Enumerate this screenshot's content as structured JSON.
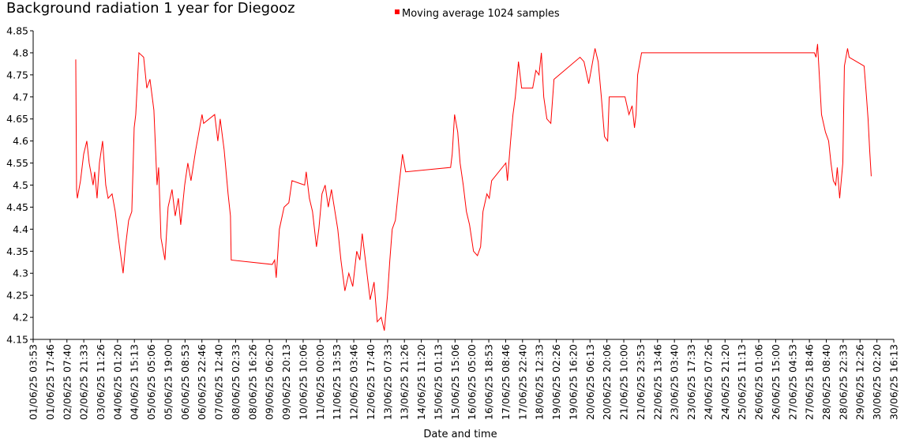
{
  "chart_data": {
    "type": "line",
    "title": "Background radiation 1 year for Diegooz",
    "x_label": "Date and time",
    "legend_position": "top",
    "grid": false,
    "xlim": [
      "01/06/25 03:53",
      "30/06/25 16:13"
    ],
    "xticks": [
      "01/06/25 03:53",
      "01/06/25 17:46",
      "02/06/25 07:40",
      "02/06/25 21:33",
      "03/06/25 11:26",
      "04/06/25 01:20",
      "04/06/25 15:13",
      "05/06/25 05:06",
      "05/06/25 19:00",
      "06/06/25 08:53",
      "06/06/25 22:46",
      "07/06/25 12:40",
      "08/06/25 02:33",
      "08/06/25 16:26",
      "09/06/25 06:20",
      "09/06/25 20:13",
      "10/06/25 10:06",
      "11/06/25 00:00",
      "11/06/25 13:53",
      "12/06/25 03:46",
      "12/06/25 17:40",
      "13/06/25 07:33",
      "13/06/25 21:26",
      "14/06/25 11:20",
      "15/06/25 01:13",
      "15/06/25 15:06",
      "16/06/25 05:00",
      "16/06/25 18:53",
      "17/06/25 08:46",
      "17/06/25 22:40",
      "18/06/25 12:33",
      "19/06/25 02:26",
      "19/06/25 16:20",
      "20/06/25 06:13",
      "20/06/25 20:06",
      "21/06/25 10:00",
      "21/06/25 23:53",
      "22/06/25 13:46",
      "23/06/25 03:40",
      "23/06/25 17:33",
      "24/06/25 07:26",
      "24/06/25 21:20",
      "25/06/25 11:13",
      "26/06/25 01:06",
      "26/06/25 15:00",
      "27/06/25 04:53",
      "27/06/25 18:46",
      "28/06/25 08:40",
      "28/06/25 22:33",
      "29/06/25 12:26",
      "30/06/25 02:20",
      "30/06/25 16:13"
    ],
    "ylim": [
      4.15,
      4.85
    ],
    "yticks": [
      4.15,
      4.2,
      4.25,
      4.3,
      4.35,
      4.4,
      4.45,
      4.5,
      4.55,
      4.6,
      4.65,
      4.7,
      4.75,
      4.8,
      4.85
    ],
    "x": [
      "02/06/25 14:57",
      "02/06/25 15:36",
      "02/06/25 16:15",
      "02/06/25 18:51",
      "02/06/25 21:27",
      "03/06/25 00:03",
      "03/06/25 01:59",
      "03/06/25 05:14",
      "03/06/25 06:32",
      "03/06/25 08:29",
      "03/06/25 10:26",
      "03/06/25 13:02",
      "03/06/25 15:38",
      "03/06/25 17:35",
      "03/06/25 20:50",
      "03/06/25 23:26",
      "04/06/25 02:02",
      "04/06/25 05:55",
      "04/06/25 07:52",
      "04/06/25 10:28",
      "04/06/25 13:04",
      "04/06/25 15:01",
      "04/06/25 16:19",
      "04/06/25 18:55",
      "04/06/25 22:49",
      "05/06/25 01:25",
      "05/06/25 04:01",
      "05/06/25 07:15",
      "05/06/25 09:51",
      "05/06/25 11:09",
      "05/06/25 13:06",
      "05/06/25 16:21",
      "05/06/25 18:56",
      "05/06/25 22:11",
      "06/06/25 00:47",
      "06/06/25 03:23",
      "06/06/25 05:20",
      "06/06/25 08:35",
      "06/06/25 11:11",
      "06/06/25 13:47",
      "06/06/25 17:41",
      "06/06/25 22:52",
      "07/06/25 00:10",
      "07/06/25 09:16",
      "07/06/25 11:52",
      "07/06/25 13:49",
      "07/06/25 17:04",
      "07/06/25 20:19",
      "07/06/25 22:16",
      "07/06/25 22:54",
      "09/06/25 08:41",
      "09/06/25 10:38",
      "09/06/25 11:56",
      "09/06/25 14:31",
      "09/06/25 18:25",
      "09/06/25 22:19",
      "10/06/25 00:55",
      "10/06/25 11:19",
      "10/06/25 12:37",
      "10/06/25 15:13",
      "10/06/25 17:48",
      "10/06/25 21:03",
      "10/06/25 23:00",
      "11/06/25 01:36",
      "11/06/25 04:12",
      "11/06/25 06:47",
      "11/06/25 09:23",
      "11/06/25 14:35",
      "11/06/25 17:11",
      "11/06/25 20:26",
      "11/06/25 23:41",
      "12/06/25 02:56",
      "12/06/25 06:11",
      "12/06/25 08:46",
      "12/06/25 10:43",
      "12/06/25 14:37",
      "12/06/25 17:13",
      "12/06/25 20:28",
      "12/06/25 23:04",
      "13/06/25 02:19",
      "13/06/25 04:55",
      "13/06/25 07:31",
      "13/06/25 09:27",
      "13/06/25 11:24",
      "13/06/25 14:00",
      "13/06/25 16:36",
      "13/06/25 19:51",
      "13/06/25 22:26",
      "15/06/25 11:28",
      "15/06/25 12:46",
      "15/06/25 14:43",
      "15/06/25 17:19",
      "15/06/25 19:16",
      "15/06/25 21:52",
      "16/06/25 00:28",
      "16/06/25 03:03",
      "16/06/25 06:18",
      "16/06/25 09:33",
      "16/06/25 12:09",
      "16/06/25 14:06",
      "16/06/25 17:20",
      "16/06/25 19:17",
      "16/06/25 21:14",
      "17/06/25 08:56",
      "17/06/25 10:14",
      "17/06/25 12:50",
      "17/06/25 14:47",
      "17/06/25 16:43",
      "17/06/25 19:19",
      "17/06/25 21:55",
      "18/06/25 07:01",
      "18/06/25 09:37",
      "18/06/25 12:13",
      "18/06/25 14:10",
      "18/06/25 16:07",
      "18/06/25 18:42",
      "18/06/25 21:57",
      "19/06/25 00:33",
      "19/06/25 21:59",
      "20/06/25 01:14",
      "20/06/25 05:08",
      "20/06/25 10:19",
      "20/06/25 12:55",
      "20/06/25 15:31",
      "20/06/25 18:07",
      "20/06/25 20:43",
      "20/06/25 22:01",
      "21/06/25 11:01",
      "21/06/25 14:15",
      "21/06/25 16:51",
      "21/06/25 18:48",
      "21/06/25 20:06",
      "21/06/25 21:24",
      "22/06/25 00:38",
      "27/06/25 22:53",
      "28/06/25 00:11",
      "28/06/25 01:29",
      "28/06/25 04:44",
      "28/06/25 07:59",
      "28/06/25 10:35",
      "28/06/25 12:31",
      "28/06/25 14:28",
      "28/06/25 16:25",
      "28/06/25 17:43",
      "28/06/25 19:40",
      "28/06/25 22:16",
      "28/06/25 23:34",
      "29/06/25 02:10",
      "29/06/25 03:28",
      "29/06/25 15:48",
      "29/06/25 17:45",
      "29/06/25 19:03",
      "29/06/25 20:21",
      "29/06/25 21:39"
    ],
    "series": [
      {
        "name": "Moving average 1024 samples",
        "color": "#ff0000",
        "values": [
          4.785,
          4.49,
          4.47,
          4.51,
          4.57,
          4.6,
          4.55,
          4.5,
          4.53,
          4.47,
          4.55,
          4.6,
          4.5,
          4.47,
          4.48,
          4.44,
          4.38,
          4.3,
          4.36,
          4.42,
          4.44,
          4.63,
          4.66,
          4.8,
          4.79,
          4.72,
          4.74,
          4.67,
          4.5,
          4.54,
          4.38,
          4.33,
          4.45,
          4.49,
          4.43,
          4.47,
          4.41,
          4.5,
          4.55,
          4.51,
          4.58,
          4.66,
          4.64,
          4.66,
          4.6,
          4.65,
          4.58,
          4.48,
          4.43,
          4.33,
          4.32,
          4.33,
          4.29,
          4.4,
          4.45,
          4.46,
          4.51,
          4.5,
          4.53,
          4.47,
          4.44,
          4.36,
          4.4,
          4.48,
          4.5,
          4.45,
          4.49,
          4.4,
          4.33,
          4.26,
          4.3,
          4.27,
          4.35,
          4.33,
          4.39,
          4.3,
          4.24,
          4.28,
          4.19,
          4.2,
          4.17,
          4.25,
          4.33,
          4.4,
          4.42,
          4.49,
          4.57,
          4.53,
          4.54,
          4.57,
          4.66,
          4.62,
          4.55,
          4.5,
          4.44,
          4.41,
          4.35,
          4.34,
          4.36,
          4.44,
          4.48,
          4.47,
          4.51,
          4.55,
          4.51,
          4.6,
          4.66,
          4.7,
          4.78,
          4.72,
          4.72,
          4.76,
          4.75,
          4.8,
          4.7,
          4.65,
          4.64,
          4.74,
          4.79,
          4.78,
          4.73,
          4.81,
          4.78,
          4.7,
          4.61,
          4.6,
          4.7,
          4.7,
          4.66,
          4.68,
          4.63,
          4.66,
          4.75,
          4.8,
          4.8,
          4.79,
          4.82,
          4.66,
          4.62,
          4.6,
          4.55,
          4.51,
          4.5,
          4.54,
          4.47,
          4.55,
          4.77,
          4.81,
          4.79,
          4.77,
          4.7,
          4.65,
          4.58,
          4.52
        ]
      }
    ]
  }
}
